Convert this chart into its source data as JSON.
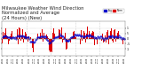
{
  "title_line1": "Milwaukee Weather Wind Direction",
  "title_line2": "Normalized and Average",
  "title_line3": "(24 Hours) (New)",
  "title_fontsize": 3.8,
  "background_color": "#ffffff",
  "bar_color": "#dd0000",
  "avg_color": "#0000cc",
  "ylim": [
    -1.6,
    1.6
  ],
  "ytick_values": [
    1.0,
    0.5,
    0.0,
    -0.5,
    -1.0
  ],
  "ytick_labels": [
    "1",
    ".5",
    "0",
    "-.5",
    "-1"
  ],
  "grid_color": "#aaaaaa",
  "legend_norm_color": "#dd0000",
  "legend_avg_color": "#0000cc",
  "n_points": 144
}
